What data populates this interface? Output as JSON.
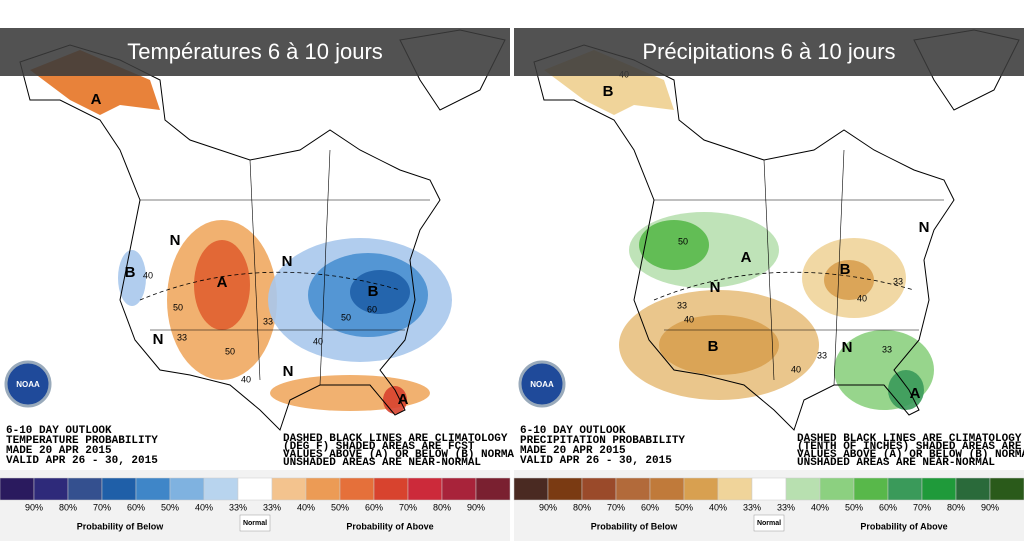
{
  "logo": "NOAA",
  "panels": [
    {
      "title": "Températures 6 à 10 jours",
      "outlook": [
        "6-10 DAY OUTLOOK",
        "TEMPERATURE PROBABILITY",
        "MADE   20 APR 2015",
        "VALID   APR 26 - 30, 2015"
      ],
      "notes": [
        "DASHED BLACK LINES ARE CLIMATOLOGY",
        "(DEG F) SHADED AREAS ARE FCST",
        "VALUES ABOVE (A) OR BELOW (B) NORMAL",
        "UNSHADED AREAS ARE NEAR-NORMAL"
      ],
      "map_labels": [
        "A",
        "A",
        "B",
        "B",
        "A",
        "N",
        "N",
        "N",
        "N",
        "40",
        "50",
        "33",
        "50",
        "40",
        "50",
        "60",
        "40",
        "33"
      ],
      "legend": {
        "colors": [
          "#2a1a5e",
          "#2e2a7a",
          "#34508f",
          "#1f5fa8",
          "#3f86c8",
          "#7fb2e0",
          "#b8d4ee",
          "#ffffff",
          "#f3c38e",
          "#ec9b55",
          "#e5703a",
          "#d8432e",
          "#cc2a3a",
          "#a8233a",
          "#7a2030"
        ],
        "below_labels": [
          "90%",
          "80%",
          "70%",
          "60%",
          "50%",
          "40%",
          "33%"
        ],
        "above_labels": [
          "33%",
          "40%",
          "50%",
          "60%",
          "70%",
          "80%",
          "90%"
        ],
        "below_caption": "Probability of Below",
        "normal_caption": "Normal",
        "above_caption": "Probability of Above"
      }
    },
    {
      "title": "Précipitations 6 à 10 jours",
      "outlook": [
        "6-10 DAY OUTLOOK",
        "PRECIPITATION PROBABILITY",
        "MADE   20 APR 2015",
        "VALID   APR 26 - 30, 2015"
      ],
      "notes": [
        "DASHED BLACK LINES ARE CLIMATOLOGY",
        "(TENTH OF INCHES) SHADED AREAS ARE FCST",
        "VALUES ABOVE (A) OR BELOW (B) NORMAL",
        "UNSHADED AREAS ARE NEAR-NORMAL"
      ],
      "map_labels": [
        "B",
        "40",
        "A",
        "B",
        "B",
        "A",
        "N",
        "N",
        "N",
        "40",
        "33",
        "50",
        "40",
        "40",
        "33",
        "33",
        "33"
      ],
      "legend": {
        "colors": [
          "#4a2a22",
          "#7a3a12",
          "#9a4a2a",
          "#b26a3a",
          "#c07a3a",
          "#d8a050",
          "#f0d49a",
          "#ffffff",
          "#b8e0b0",
          "#8cd080",
          "#58b84a",
          "#3a9a5a",
          "#1f9a3a",
          "#2a6a3a",
          "#2a5a1a"
        ],
        "below_labels": [
          "90%",
          "80%",
          "70%",
          "60%",
          "50%",
          "40%",
          "33%"
        ],
        "above_labels": [
          "33%",
          "40%",
          "50%",
          "60%",
          "70%",
          "80%",
          "90%"
        ],
        "below_caption": "Probability of Below",
        "normal_caption": "Normal",
        "above_caption": "Probability of Above"
      }
    }
  ]
}
